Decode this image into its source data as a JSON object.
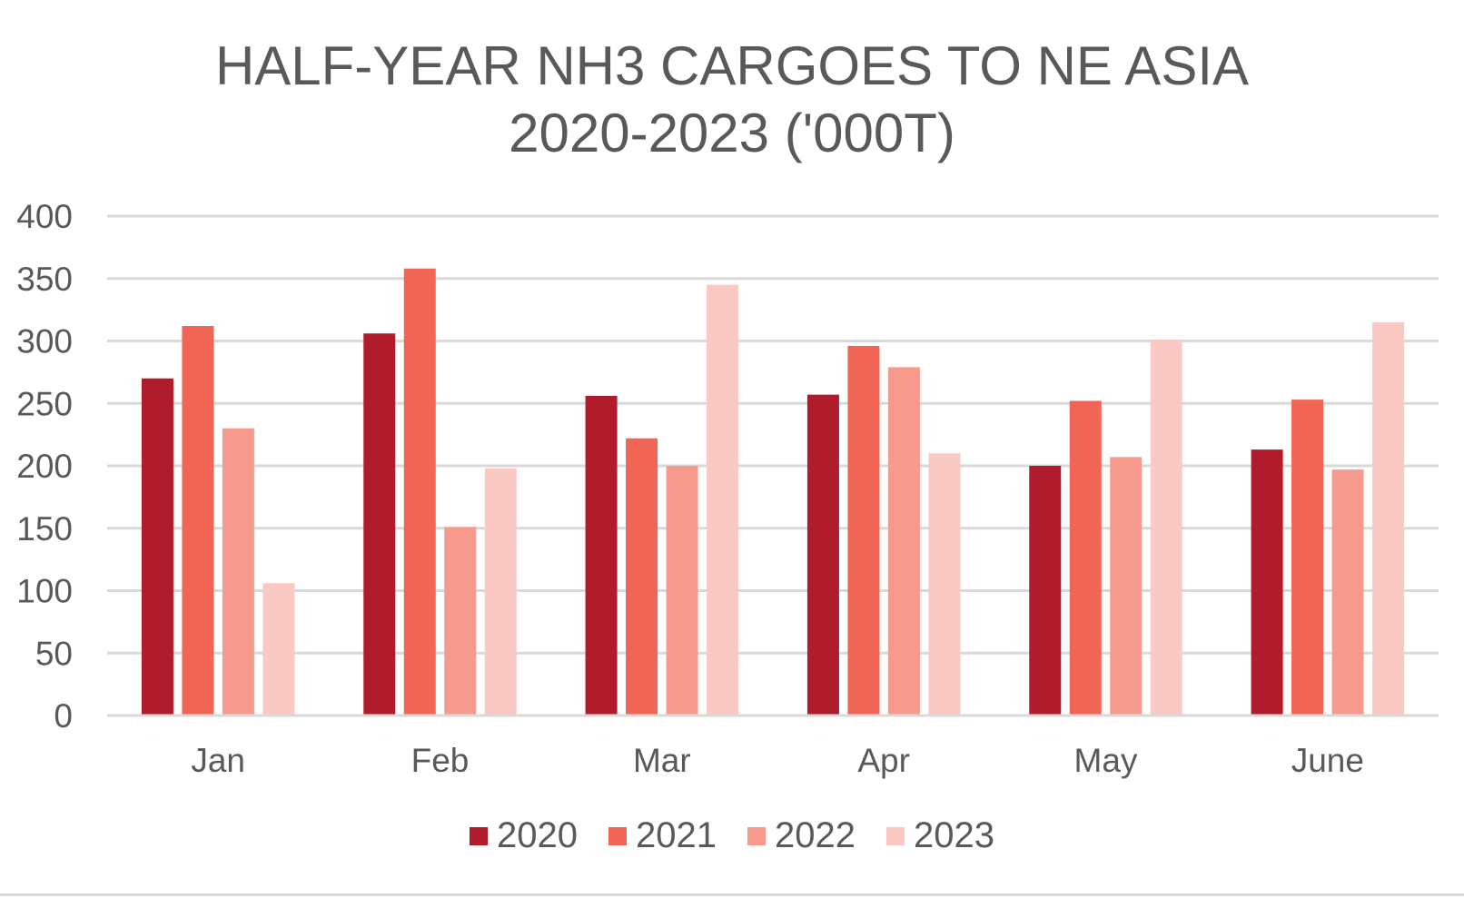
{
  "chart_data": {
    "type": "bar",
    "title": [
      "HALF-YEAR NH3 CARGOES TO NE ASIA",
      "2020-2023 ('000T)"
    ],
    "categories": [
      "Jan",
      "Feb",
      "Mar",
      "Apr",
      "May",
      "June"
    ],
    "series": [
      {
        "name": "2020",
        "color": "#b11c2d",
        "values": [
          270,
          306,
          256,
          257,
          200,
          213
        ]
      },
      {
        "name": "2021",
        "color": "#f06555",
        "values": [
          312,
          358,
          222,
          296,
          252,
          253
        ]
      },
      {
        "name": "2022",
        "color": "#f69a8e",
        "values": [
          230,
          151,
          200,
          279,
          207,
          197
        ]
      },
      {
        "name": "2023",
        "color": "#fac9c4",
        "values": [
          106,
          198,
          345,
          210,
          301,
          315
        ]
      }
    ],
    "ylim": [
      0,
      400
    ],
    "yticks": [
      0,
      50,
      100,
      150,
      200,
      250,
      300,
      350,
      400
    ],
    "grid": true,
    "legend_position": "bottom",
    "xlabel": "",
    "ylabel": ""
  }
}
